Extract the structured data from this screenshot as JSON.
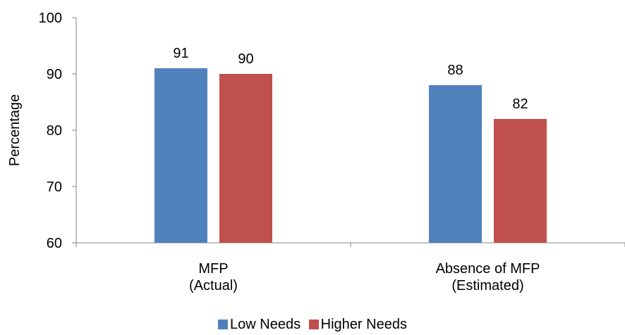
{
  "chart_data": {
    "type": "bar",
    "categories": [
      [
        "MFP",
        "(Actual)"
      ],
      [
        "Absence of MFP",
        "(Estimated)"
      ]
    ],
    "series": [
      {
        "name": "Low Needs",
        "values": [
          91,
          88
        ],
        "color": "#4F81BD"
      },
      {
        "name": "Higher Needs",
        "values": [
          90,
          82
        ],
        "color": "#C0504D"
      }
    ],
    "bar_value_labels": [
      [
        "91",
        "90"
      ],
      [
        "88",
        "82"
      ]
    ],
    "ylabel": "Percentage",
    "ylim": [
      60,
      100
    ],
    "yticks": [
      60,
      70,
      80,
      90,
      100
    ],
    "grid": false,
    "legend_position": "bottom"
  }
}
